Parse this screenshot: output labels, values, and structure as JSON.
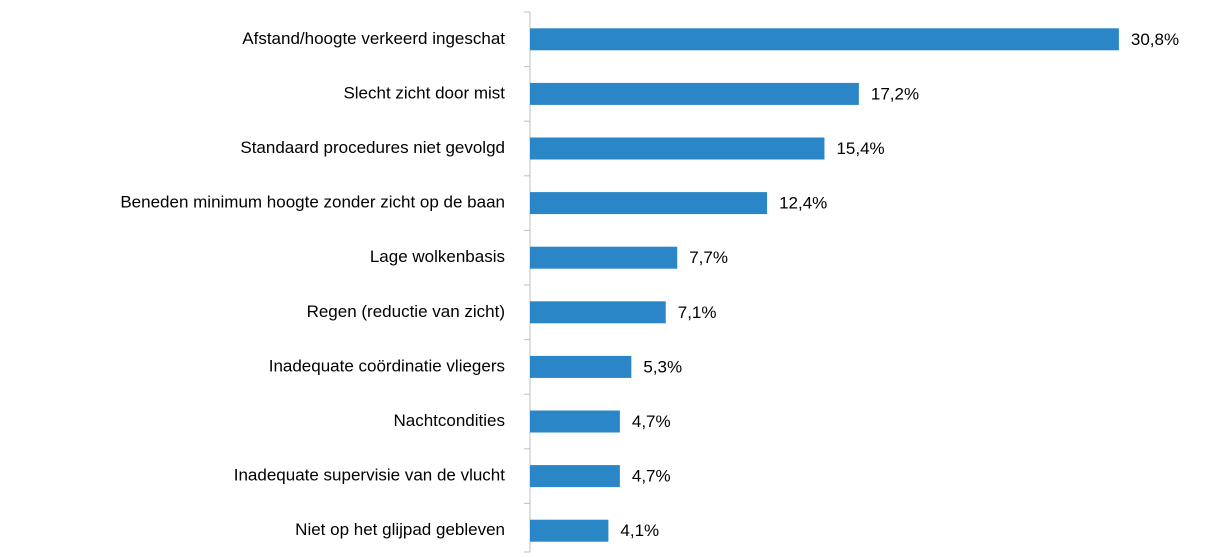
{
  "chart_data": {
    "type": "bar",
    "orientation": "horizontal",
    "categories": [
      "Afstand/hoogte verkeerd ingeschat",
      "Slecht zicht door mist",
      "Standaard procedures niet gevolgd",
      "Beneden minimum hoogte zonder zicht op de baan",
      "Lage wolkenbasis",
      "Regen (reductie van zicht)",
      "Inadequate coördinatie vliegers",
      "Nachtcondities",
      "Inadequate supervisie van de vlucht",
      "Niet op het glijpad gebleven"
    ],
    "values": [
      30.8,
      17.2,
      15.4,
      12.4,
      7.7,
      7.1,
      5.3,
      4.7,
      4.7,
      4.1
    ],
    "value_labels": [
      "30,8%",
      "17,2%",
      "15,4%",
      "12,4%",
      "7,7%",
      "7,1%",
      "5,3%",
      "4,7%",
      "4,7%",
      "4,1%"
    ],
    "color": "#2a86c7",
    "xlim": [
      0,
      35
    ]
  }
}
